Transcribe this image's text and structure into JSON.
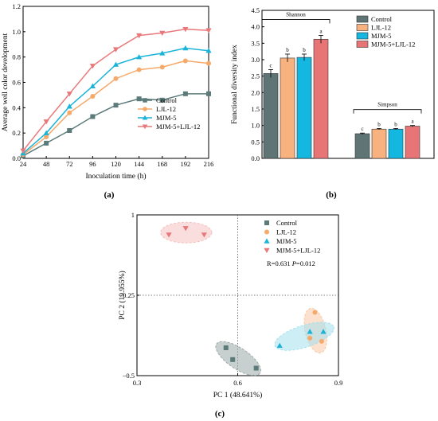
{
  "chart_data": [
    {
      "panel": "(a)",
      "type": "line",
      "xlabel": "Inoculation time (h)",
      "ylabel": "Average well color development",
      "x": [
        24,
        48,
        72,
        96,
        120,
        144,
        168,
        192,
        216
      ],
      "xlim": [
        24,
        216
      ],
      "ylim": [
        0,
        1.2
      ],
      "yticks": [
        "0.0",
        "0.2",
        "0.4",
        "0.6",
        "0.8",
        "1.0",
        "1.2"
      ],
      "xticks": [
        "24",
        "48",
        "72",
        "96",
        "120",
        "144",
        "168",
        "192",
        "216"
      ],
      "legend_position": "bottom-right",
      "series": [
        {
          "name": "Control",
          "color": "#5b7b7a",
          "marker": "square",
          "values": [
            0.02,
            0.12,
            0.22,
            0.33,
            0.42,
            0.47,
            0.46,
            0.51,
            0.51
          ]
        },
        {
          "name": "LJL-12",
          "color": "#f5a96a",
          "marker": "circle",
          "values": [
            0.03,
            0.17,
            0.36,
            0.49,
            0.63,
            0.7,
            0.72,
            0.77,
            0.75
          ]
        },
        {
          "name": "MJM-5",
          "color": "#19b4d8",
          "marker": "triangle-up",
          "values": [
            0.04,
            0.2,
            0.41,
            0.57,
            0.74,
            0.8,
            0.83,
            0.87,
            0.85
          ]
        },
        {
          "name": "MJM-5+LJL-12",
          "color": "#e8787a",
          "marker": "triangle-down",
          "values": [
            0.06,
            0.29,
            0.51,
            0.73,
            0.86,
            0.97,
            0.99,
            1.02,
            1.01
          ]
        }
      ]
    },
    {
      "panel": "(b)",
      "type": "bar",
      "ylabel": "Functional diversity index",
      "ylim": [
        0,
        4.5
      ],
      "yticks": [
        "0.0",
        "0.5",
        "1.0",
        "1.5",
        "2.0",
        "2.5",
        "3.0",
        "3.5",
        "4.0",
        "4.5"
      ],
      "categories": [
        "Shannon",
        "Simpson"
      ],
      "legend_position": "top-right",
      "series": [
        {
          "name": "Control",
          "color": "#5f7474",
          "values": [
            2.58,
            0.75
          ],
          "errors": [
            0.12,
            0.02
          ],
          "letters": [
            "c",
            "c"
          ]
        },
        {
          "name": "LJL-12",
          "color": "#f7b27f",
          "values": [
            3.05,
            0.89
          ],
          "errors": [
            0.12,
            0.02
          ],
          "letters": [
            "b",
            "b"
          ]
        },
        {
          "name": "MJM-5",
          "color": "#14b7e0",
          "values": [
            3.07,
            0.89
          ],
          "errors": [
            0.1,
            0.02
          ],
          "letters": [
            "b",
            "b"
          ]
        },
        {
          "name": "MJM-5+LJL-12",
          "color": "#e87576",
          "values": [
            3.62,
            0.98
          ],
          "errors": [
            0.12,
            0.02
          ],
          "letters": [
            "a",
            "a"
          ]
        }
      ]
    },
    {
      "panel": "(c)",
      "type": "scatter",
      "xlabel": "PC 1 (48.641%)",
      "ylabel": "PC 2 (19.955%)",
      "xlim": [
        0.3,
        0.9
      ],
      "ylim": [
        -0.5,
        1
      ],
      "xticks": [
        "0.3",
        "0.6",
        "0.9"
      ],
      "yticks": [
        "-0.5",
        "0.25",
        "1"
      ],
      "annotation_r": "R=0.631",
      "annotation_p_label": "P",
      "annotation_p_value": "=0.012",
      "legend_position": "top-right",
      "series": [
        {
          "name": "Control",
          "color": "#5b7b7a",
          "ellipse": "#9aa9a8",
          "marker": "square",
          "points": [
            [
              0.565,
              -0.24
            ],
            [
              0.585,
              -0.35
            ],
            [
              0.655,
              -0.43
            ]
          ]
        },
        {
          "name": "LJL-12",
          "color": "#f5a96a",
          "ellipse": "#f9c9a5",
          "marker": "circle",
          "points": [
            [
              0.83,
              0.09
            ],
            [
              0.815,
              -0.15
            ],
            [
              0.85,
              -0.18
            ]
          ]
        },
        {
          "name": "MJM-5",
          "color": "#19b4d8",
          "ellipse": "#a6e0ef",
          "marker": "triangle-up",
          "points": [
            [
              0.725,
              -0.22
            ],
            [
              0.815,
              -0.09
            ],
            [
              0.855,
              -0.09
            ]
          ]
        },
        {
          "name": "MJM-5+LJL-12",
          "color": "#e8787a",
          "ellipse": "#f5c1c1",
          "marker": "triangle-down",
          "points": [
            [
              0.395,
              0.815
            ],
            [
              0.445,
              0.875
            ],
            [
              0.5,
              0.815
            ]
          ]
        }
      ]
    }
  ]
}
